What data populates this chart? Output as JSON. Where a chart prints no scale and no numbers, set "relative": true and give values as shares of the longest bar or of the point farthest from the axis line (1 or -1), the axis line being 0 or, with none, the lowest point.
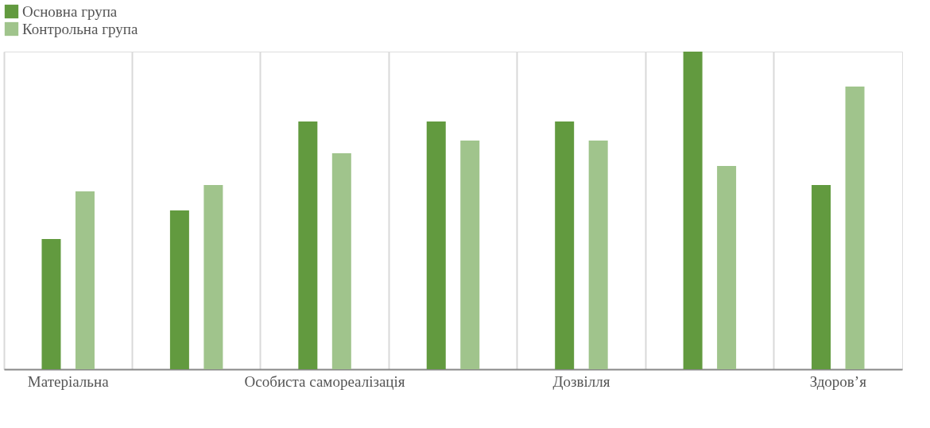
{
  "chart_data": {
    "type": "bar",
    "relative": true,
    "categories": [
      "Матеріальна",
      null,
      "Особиста самореалізація",
      null,
      "Дозвілля",
      null,
      "Здоров’я"
    ],
    "series": [
      {
        "name": "Основна група",
        "color": "#629a3f",
        "values": [
          0.41,
          0.5,
          0.78,
          0.78,
          0.78,
          1,
          0.58
        ]
      },
      {
        "name": "Контрольна група",
        "color": "#a0c48c",
        "values": [
          0.56,
          0.58,
          0.68,
          0.72,
          0.72,
          0.64,
          0.89
        ]
      }
    ],
    "grid": "x",
    "legend": "top"
  }
}
